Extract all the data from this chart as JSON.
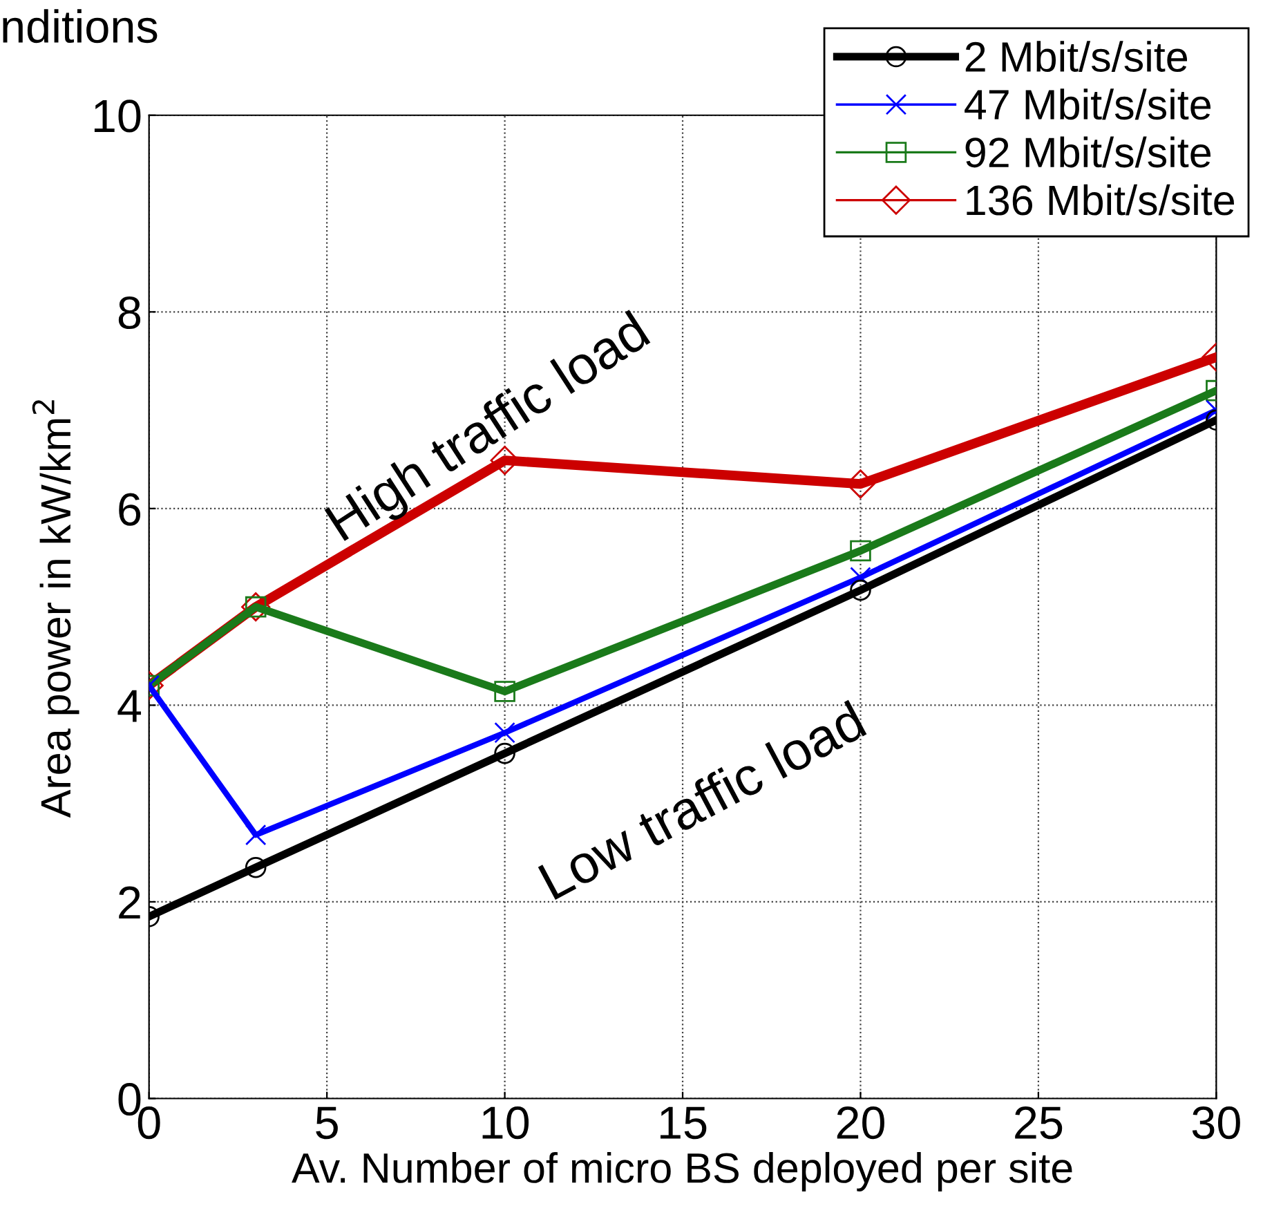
{
  "chart_data": {
    "type": "line",
    "title": "nditions",
    "xlabel": "Av. Number of micro BS deployed per site",
    "ylabel": "Area power in kW/km$^{2}$",
    "x": [
      0,
      3,
      10,
      20,
      30
    ],
    "series": [
      {
        "name": "2 Mbit/s/site",
        "color": "#000000",
        "marker": "circle",
        "values": [
          1.85,
          2.35,
          3.51,
          5.17,
          6.9
        ]
      },
      {
        "name": "47 Mbit/s/site",
        "color": "#0000ff",
        "marker": "cross",
        "values": [
          4.2,
          2.68,
          3.72,
          5.3,
          7.0
        ]
      },
      {
        "name": "92 Mbit/s/site",
        "color": "#1a7a1a",
        "marker": "square",
        "values": [
          4.2,
          5.0,
          4.14,
          5.57,
          7.2
        ]
      },
      {
        "name": "136 Mbit/s/site",
        "color": "#cc0000",
        "marker": "diamond",
        "values": [
          4.2,
          5.0,
          6.49,
          6.25,
          7.54
        ]
      }
    ],
    "xlim": [
      0,
      30
    ],
    "xticks": [
      0,
      5,
      10,
      15,
      20,
      25,
      30
    ],
    "ylim": [
      0,
      10
    ],
    "yticks": [
      0,
      2,
      4,
      6,
      8,
      10
    ],
    "grid": true,
    "legend": "top right",
    "line_style": "solid",
    "annotations": [
      "High traffic load",
      "Low traffic load"
    ]
  }
}
